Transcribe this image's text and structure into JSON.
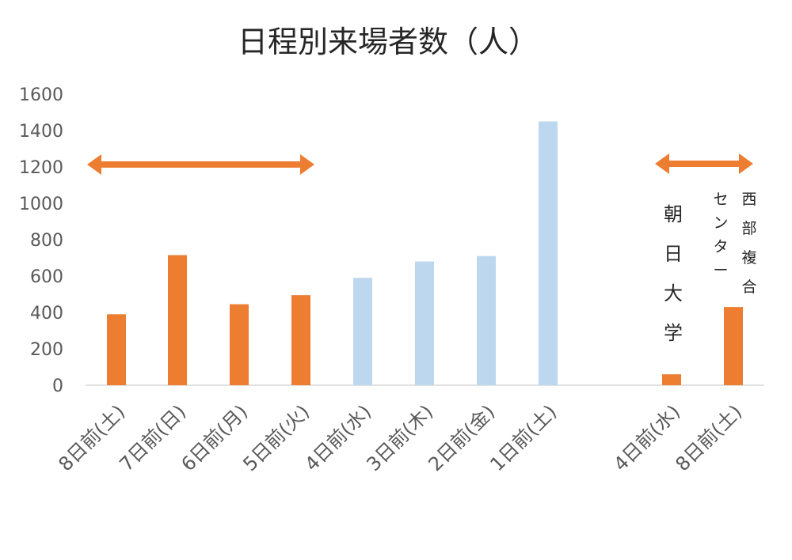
{
  "chart_data": {
    "type": "bar",
    "title": "日程別来場者数（人）",
    "xlabel": "",
    "ylabel": "",
    "ylim": [
      0,
      1600
    ],
    "yticks": [
      0,
      200,
      400,
      600,
      800,
      1000,
      1200,
      1400,
      1600
    ],
    "grid": false,
    "categories": [
      "8日前(土)",
      "7日前(日)",
      "6日前(月)",
      "5日前(火)",
      "4日前(水)",
      "3日前(木)",
      "2日前(金)",
      "1日前(土)",
      "4日前(水)",
      "8日前(土)"
    ],
    "values": [
      390,
      715,
      445,
      495,
      590,
      680,
      710,
      1450,
      60,
      430
    ],
    "bar_colors": [
      "#ED7D31",
      "#ED7D31",
      "#ED7D31",
      "#ED7D31",
      "#BDD7EE",
      "#BDD7EE",
      "#BDD7EE",
      "#BDD7EE",
      "#ED7D31",
      "#ED7D31"
    ],
    "annotations": {
      "asahi": "朝日大学",
      "center": "センター",
      "seibu": "西部複合"
    },
    "arrow_color": "#ED7D31"
  }
}
